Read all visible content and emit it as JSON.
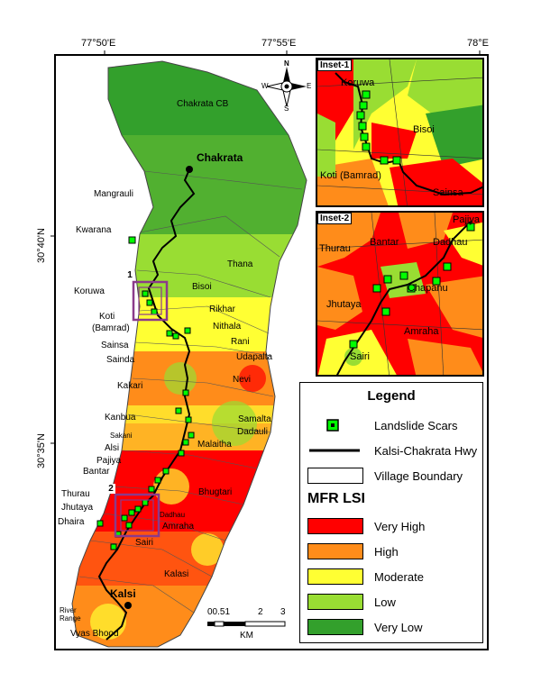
{
  "coords": {
    "top": [
      "77°50'E",
      "77°55'E",
      "78°E"
    ],
    "left": [
      "30°40'N",
      "30°35'N"
    ]
  },
  "north_arrow": {
    "n": "N",
    "s": "S",
    "e": "E",
    "w": "W"
  },
  "places": {
    "chakrata_cb": "Chakrata CB",
    "chakrata": "Chakrata",
    "mangrauli": "Mangrauli",
    "kwarana": "Kwarana",
    "thana": "Thana",
    "koruwa": "Koruwa",
    "bisoi": "Bisoi",
    "rikhar": "Rikhar",
    "koti": "Koti",
    "bamrad": "(Bamrad)",
    "nithala": "Nithala",
    "sainsa": "Sainsa",
    "rani": "Rani",
    "sainda": "Sainda",
    "udapalta": "Udapalta",
    "nevi": "Nevi",
    "kakari": "Kakari",
    "kanbua": "Kanbua",
    "samalta": "Samalta",
    "dadauli": "Dadauli",
    "sakani": "Sakani",
    "malaitha": "Malaitha",
    "alsi": "Alsi",
    "pajiya": "Pajiya",
    "bantar": "Bantar",
    "bhugtari": "Bhugtari",
    "thurau": "Thurau",
    "jhutaya": "Jhutaya",
    "dadhau": "Dadhau",
    "dhaira": "Dhaira",
    "amraha": "Amraha",
    "sairi": "Sairi",
    "kalasi": "Kalasi",
    "kalsi": "Kalsi",
    "river_range": "River Range",
    "vyas_bhood": "Vyas Bhood"
  },
  "box_labels": {
    "one": "1",
    "two": "2"
  },
  "scale": {
    "ticks": [
      "00.51",
      "2",
      "3"
    ],
    "unit": "KM"
  },
  "inset1": {
    "title": "Inset-1",
    "labels": {
      "koruwa": "Koruwa",
      "bisoi": "Bisoi",
      "koti": "Koti (Bamrad)",
      "sainsa": "Sainsa"
    }
  },
  "inset2": {
    "title": "Inset-2",
    "labels": {
      "pajiya": "Pajiya",
      "bantar": "Bantar",
      "dadhau": "Dadhau",
      "thurau": "Thurau",
      "jhutaya": "Jhutaya",
      "chapanu": "Chapanu",
      "amraha": "Amraha",
      "sairi": "Sairi"
    }
  },
  "legend": {
    "title": "Legend",
    "items": [
      "Landslide Scars",
      "Kalsi-Chakrata Hwy",
      "Village Boundary"
    ],
    "lsi_title": "MFR LSI",
    "classes": [
      {
        "label": "Very High",
        "color": "#ff0000"
      },
      {
        "label": "High",
        "color": "#ff8c1a"
      },
      {
        "label": "Moderate",
        "color": "#ffff33"
      },
      {
        "label": "Low",
        "color": "#99dd33"
      },
      {
        "label": "Very Low",
        "color": "#33a02c"
      }
    ]
  }
}
